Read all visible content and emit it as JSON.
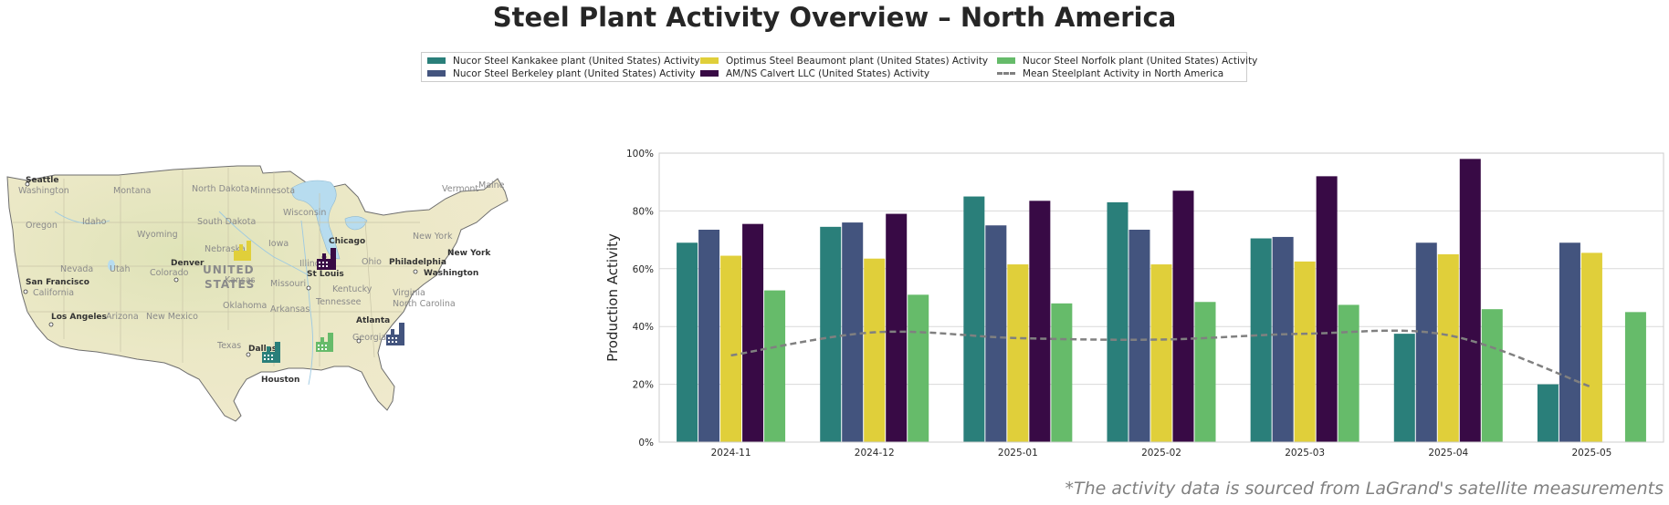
{
  "title": "Steel Plant Activity Overview – North America",
  "footnote": "*The activity data is sourced from LaGrand's satellite measurements",
  "legend": [
    {
      "label": "Nucor Steel Kankakee plant (United States) Activity",
      "color": "#2a7f7a",
      "kind": "bar"
    },
    {
      "label": "Nucor Steel Berkeley plant (United States) Activity",
      "color": "#43547e",
      "kind": "bar"
    },
    {
      "label": "Optimus Steel Beaumont plant (United States) Activity",
      "color": "#e0cf3a",
      "kind": "bar"
    },
    {
      "label": "AM/NS Calvert LLC (United States) Activity",
      "color": "#380a45",
      "kind": "bar"
    },
    {
      "label": "Nucor Steel Norfolk plant (United States) Activity",
      "color": "#66bb6a",
      "kind": "bar"
    },
    {
      "label": "Mean Steelplant Activity in North America",
      "color": "#808080",
      "kind": "dashed-line"
    }
  ],
  "map": {
    "country_label": [
      "UNITED",
      "STATES"
    ],
    "cities": [
      "Seattle",
      "San Francisco",
      "Los Angeles",
      "Denver",
      "Dallas",
      "Houston",
      "Chicago",
      "St Louis",
      "Atlanta",
      "Philadelphia",
      "Washington",
      "New York"
    ],
    "states": [
      "Washington",
      "Oregon",
      "California",
      "Nevada",
      "Idaho",
      "Montana",
      "Wyoming",
      "Utah",
      "Arizona",
      "Colorado",
      "New Mexico",
      "North Dakota",
      "South Dakota",
      "Nebraska",
      "Kansas",
      "Oklahoma",
      "Texas",
      "Minnesota",
      "Iowa",
      "Missouri",
      "Arkansas",
      "Wisconsin",
      "Illinois",
      "Kentucky",
      "Tennessee",
      "Ohio",
      "Georgia",
      "Virginia",
      "North Carolina",
      "Maine",
      "Vermont"
    ],
    "markers": [
      {
        "plant": "Nucor Steel Kankakee plant (United States)",
        "color": "#2a7f7a"
      },
      {
        "plant": "Nucor Steel Berkeley plant (United States)",
        "color": "#43547e"
      },
      {
        "plant": "Optimus Steel Beaumont plant (United States)",
        "color": "#e0cf3a"
      },
      {
        "plant": "AM/NS Calvert LLC (United States)",
        "color": "#380a45"
      },
      {
        "plant": "Nucor Steel Norfolk plant (United States)",
        "color": "#66bb6a"
      }
    ]
  },
  "chart_data": {
    "type": "bar",
    "title": "",
    "xlabel": "",
    "ylabel": "Production Activity",
    "ylim": [
      0,
      100
    ],
    "yticks": [
      "0%",
      "20%",
      "40%",
      "60%",
      "80%",
      "100%"
    ],
    "grid": true,
    "categories": [
      "2024-11",
      "2024-12",
      "2025-01",
      "2025-02",
      "2025-03",
      "2025-04",
      "2025-05"
    ],
    "series": [
      {
        "name": "Nucor Steel Kankakee plant (United States) Activity",
        "color": "#2a7f7a",
        "values": [
          69,
          74.5,
          85,
          83,
          70.5,
          37.5,
          20
        ]
      },
      {
        "name": "Nucor Steel Berkeley plant (United States) Activity",
        "color": "#43547e",
        "values": [
          73.5,
          76,
          75,
          73.5,
          71,
          69,
          69
        ]
      },
      {
        "name": "Optimus Steel Beaumont plant (United States) Activity",
        "color": "#e0cf3a",
        "values": [
          64.5,
          63.5,
          61.5,
          61.5,
          62.5,
          65,
          65.5
        ]
      },
      {
        "name": "AM/NS Calvert LLC (United States) Activity",
        "color": "#380a45",
        "values": [
          75.5,
          79,
          83.5,
          87,
          92,
          98,
          null
        ]
      },
      {
        "name": "Nucor Steel Norfolk plant (United States) Activity",
        "color": "#66bb6a",
        "values": [
          52.5,
          51,
          48,
          48.5,
          47.5,
          46,
          45
        ]
      }
    ],
    "mean_line": {
      "name": "Mean Steelplant Activity in North America",
      "color": "#808080",
      "values": [
        30,
        38,
        36,
        35.5,
        37.5,
        37,
        19
      ]
    }
  }
}
